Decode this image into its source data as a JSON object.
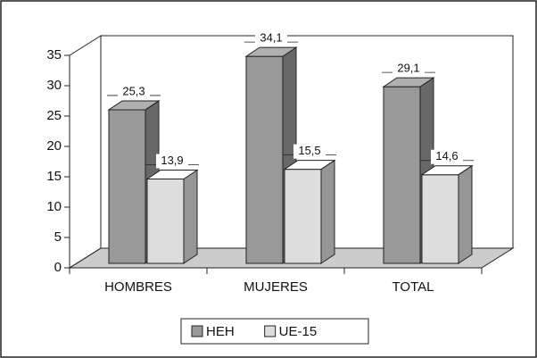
{
  "chart_data": {
    "type": "bar3d",
    "categories": [
      "HOMBRES",
      "MUJERES",
      "TOTAL"
    ],
    "series": [
      {
        "name": "HEH",
        "color": "#999999",
        "values": [
          25.3,
          34.1,
          29.1
        ],
        "value_labels": [
          "25,3",
          "34,1",
          "29,1"
        ]
      },
      {
        "name": "UE-15",
        "color": "#dddddd",
        "values": [
          13.9,
          15.5,
          14.6
        ],
        "value_labels": [
          "13,9",
          "15,5",
          "14,6"
        ]
      }
    ],
    "ylim": [
      0,
      35
    ],
    "yticks": [
      0,
      5,
      10,
      15,
      20,
      25,
      30,
      35
    ],
    "legend": "bottom"
  }
}
